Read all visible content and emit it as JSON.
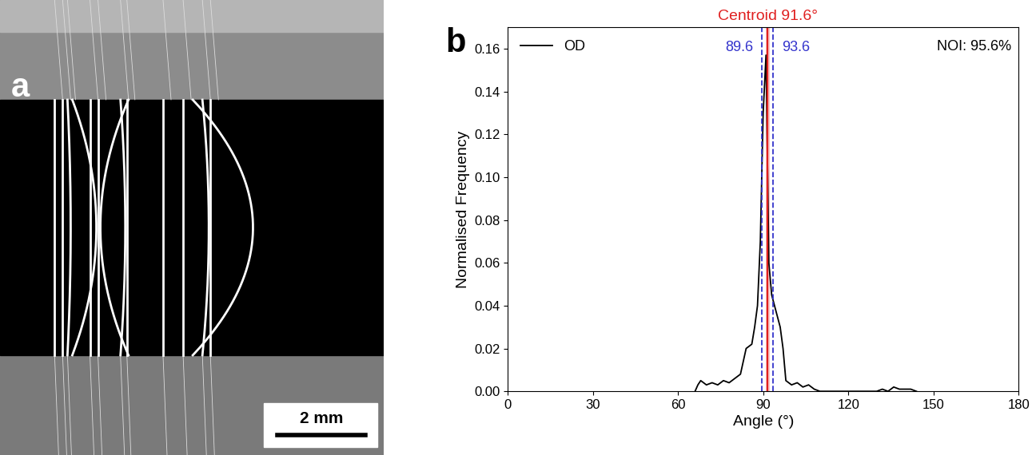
{
  "panel_a": {
    "label": "a",
    "scale_bar": "2 mm"
  },
  "chart_data": {
    "type": "line",
    "label": "b",
    "title": "Centroid 91.6°",
    "x_label": "Angle (°)",
    "y_label": "Normalised Frequency",
    "series": [
      {
        "name": "OD",
        "color": "#000000",
        "x": [
          66,
          67,
          68,
          70,
          72,
          74,
          76,
          78,
          80,
          82,
          84,
          85,
          86,
          87,
          88,
          89,
          90,
          91,
          92,
          93,
          94,
          95,
          96,
          97,
          98,
          100,
          102,
          104,
          106,
          108,
          110,
          112,
          130,
          132,
          134,
          136,
          138,
          140,
          142,
          144
        ],
        "values": [
          0.0,
          0.003,
          0.005,
          0.003,
          0.004,
          0.003,
          0.005,
          0.004,
          0.006,
          0.008,
          0.02,
          0.021,
          0.022,
          0.03,
          0.04,
          0.07,
          0.13,
          0.157,
          0.06,
          0.045,
          0.04,
          0.035,
          0.03,
          0.02,
          0.005,
          0.003,
          0.004,
          0.002,
          0.003,
          0.001,
          0.0,
          0.0,
          0.0,
          0.001,
          0.0,
          0.002,
          0.001,
          0.001,
          0.001,
          0.0
        ]
      }
    ],
    "legend": "upper left",
    "xlim": [
      0,
      180
    ],
    "xticks": [
      0,
      30,
      60,
      90,
      120,
      150,
      180
    ],
    "ylim": [
      0,
      0.17
    ],
    "yticks": [
      {
        "value": 0,
        "label": "0.00"
      },
      {
        "value": 0.02,
        "label": "0.02"
      },
      {
        "value": 0.04,
        "label": "0.04"
      },
      {
        "value": 0.06,
        "label": "0.06"
      },
      {
        "value": 0.08,
        "label": "0.08"
      },
      {
        "value": 0.1,
        "label": "0.10"
      },
      {
        "value": 0.12,
        "label": "0.12"
      },
      {
        "value": 0.14,
        "label": "0.14"
      },
      {
        "value": 0.16,
        "label": "0.16"
      }
    ],
    "centroid": 91.6,
    "centroid_color": "#e02020",
    "centroid_band": [
      91.0,
      92.2
    ],
    "bounds": [
      89.6,
      93.6
    ],
    "bounds_color": "#3333cc",
    "annotations": [
      "NOI: 95.6%"
    ]
  }
}
